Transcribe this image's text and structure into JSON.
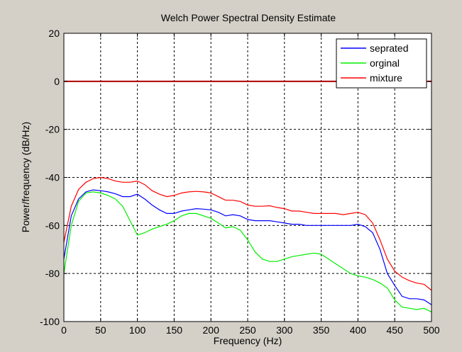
{
  "chart_data": {
    "type": "line",
    "title": "Welch Power Spectral Density Estimate",
    "xlabel": "Frequency (Hz)",
    "ylabel": "Power/frequency (dB/Hz)",
    "xlim": [
      0,
      500
    ],
    "ylim": [
      -100,
      20
    ],
    "xticks": [
      0,
      50,
      100,
      150,
      200,
      250,
      300,
      350,
      400,
      450,
      500
    ],
    "yticks": [
      -100,
      -80,
      -60,
      -40,
      -20,
      0,
      20
    ],
    "grid": true,
    "legend_position": "top-right",
    "reference_line": {
      "y": 0,
      "color": "#b00000"
    },
    "series": [
      {
        "name": "seprated",
        "color": "#0000ff",
        "x": [
          0,
          10,
          20,
          30,
          40,
          50,
          60,
          70,
          80,
          90,
          100,
          110,
          120,
          130,
          140,
          150,
          160,
          170,
          180,
          190,
          200,
          210,
          220,
          230,
          240,
          250,
          260,
          270,
          280,
          290,
          300,
          310,
          320,
          330,
          340,
          350,
          360,
          370,
          380,
          390,
          400,
          410,
          420,
          430,
          440,
          450,
          460,
          470,
          480,
          490,
          500
        ],
        "y": [
          -74,
          -56,
          -49,
          -46,
          -45.2,
          -45.5,
          -46,
          -46.8,
          -48,
          -48,
          -47,
          -49,
          -51.5,
          -53.5,
          -55,
          -55,
          -54,
          -53.5,
          -53,
          -53.2,
          -53.5,
          -54.5,
          -56,
          -55.5,
          -56,
          -57.5,
          -58,
          -58,
          -58,
          -58.5,
          -59,
          -59.5,
          -59.5,
          -60,
          -60,
          -60,
          -60,
          -60,
          -60,
          -60,
          -59.5,
          -60.5,
          -63,
          -70,
          -80,
          -85,
          -89.5,
          -90.5,
          -90.5,
          -91,
          -93
        ]
      },
      {
        "name": "orginal",
        "color": "#00ee00",
        "x": [
          0,
          10,
          20,
          30,
          40,
          50,
          60,
          70,
          80,
          90,
          100,
          110,
          120,
          130,
          140,
          150,
          160,
          170,
          180,
          190,
          200,
          210,
          220,
          230,
          240,
          250,
          260,
          270,
          280,
          290,
          300,
          310,
          320,
          330,
          340,
          350,
          360,
          370,
          380,
          390,
          400,
          410,
          420,
          430,
          440,
          450,
          460,
          470,
          480,
          490,
          500
        ],
        "y": [
          -80,
          -60,
          -50,
          -46.5,
          -46,
          -46.5,
          -47.5,
          -49,
          -52,
          -58,
          -64,
          -63,
          -61.5,
          -60.5,
          -59.5,
          -58,
          -56,
          -55,
          -55,
          -56,
          -57,
          -59,
          -61,
          -60.5,
          -62,
          -66,
          -71,
          -74,
          -75,
          -75,
          -74,
          -73,
          -72.5,
          -72,
          -71.5,
          -72,
          -74,
          -76,
          -78,
          -80,
          -81,
          -81.5,
          -82.5,
          -84,
          -86,
          -91,
          -94,
          -94.5,
          -95,
          -94.5,
          -96
        ]
      },
      {
        "name": "mixture",
        "color": "#ff0000",
        "x": [
          0,
          10,
          20,
          30,
          40,
          50,
          60,
          70,
          80,
          90,
          100,
          110,
          120,
          130,
          140,
          150,
          160,
          170,
          180,
          190,
          200,
          210,
          220,
          230,
          240,
          250,
          260,
          270,
          280,
          290,
          300,
          310,
          320,
          330,
          340,
          350,
          360,
          370,
          380,
          390,
          400,
          410,
          420,
          430,
          440,
          450,
          460,
          470,
          480,
          490,
          500
        ],
        "y": [
          -67,
          -52,
          -45,
          -42,
          -40.5,
          -40,
          -40.5,
          -41.5,
          -42,
          -42,
          -41.5,
          -43,
          -45.5,
          -47,
          -48,
          -47.5,
          -46.5,
          -46,
          -45.8,
          -46,
          -46.5,
          -48,
          -49.5,
          -49.5,
          -50,
          -51.5,
          -52,
          -52,
          -51.8,
          -52.5,
          -53,
          -54,
          -54,
          -54.5,
          -55,
          -55,
          -55,
          -55,
          -55.5,
          -55,
          -54.5,
          -55.5,
          -59,
          -66,
          -74,
          -79,
          -81.5,
          -83,
          -84,
          -84.5,
          -87
        ]
      }
    ]
  }
}
